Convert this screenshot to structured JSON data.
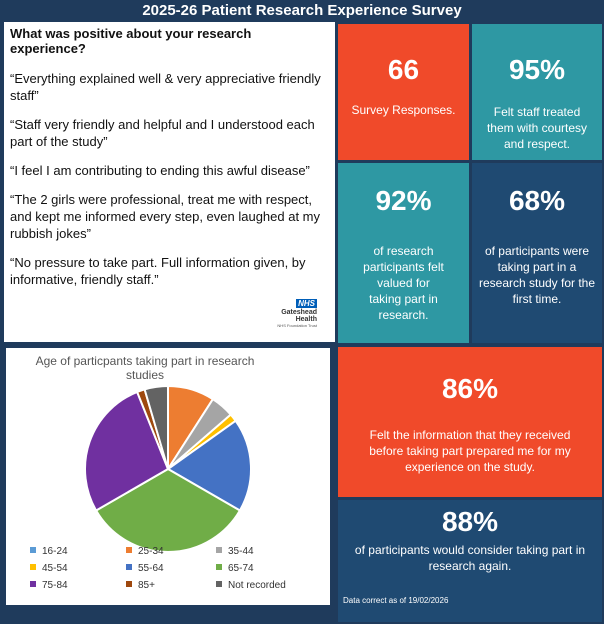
{
  "title": "2025-26 Patient Research Experience Survey",
  "quotes": {
    "heading": "What was positive about your research experience?",
    "items": [
      "“Everything explained well & very appreciative friendly staff”",
      "“Staff very friendly and helpful and I understood each part of the study”",
      "“I feel I am contributing to ending this awful disease”",
      "“The 2 girls were professional, treat me with respect, and kept me informed every step, even laughed at my rubbish jokes”",
      "“No pressure to take part. Full information given, by informative, friendly staff.”"
    ],
    "logo": {
      "badge": "NHS",
      "name": "Gateshead Health",
      "sub": "NHS Foundation Trust"
    }
  },
  "stats": [
    {
      "value": "66",
      "text": "Survey Responses."
    },
    {
      "value": "95%",
      "text": "Felt staff treated them with courtesy and respect."
    },
    {
      "value": "92%",
      "text": "of research participants felt valued for taking part in research."
    },
    {
      "value": "68%",
      "text": "of participants were taking part in a research study for the first time."
    },
    {
      "value": "86%",
      "text": "Felt the information that they received before taking part prepared me for my experience on the study."
    },
    {
      "value": "88%",
      "text": "of participants would consider taking part in research again."
    }
  ],
  "footnote": "Data correct as of 19/02/2026",
  "chart_data": {
    "type": "pie",
    "title": "Age of particpants taking part in research studies",
    "categories": [
      "16-24",
      "25-34",
      "35-44",
      "45-54",
      "55-64",
      "65-74",
      "75-84",
      "85+",
      "Not recorded"
    ],
    "values": [
      0,
      6,
      3,
      1,
      12,
      22,
      18,
      1,
      3
    ],
    "colors": [
      "#5b9bd5",
      "#ed7d31",
      "#a5a5a5",
      "#ffc000",
      "#4472c4",
      "#70ad47",
      "#7030a0",
      "#9e480e",
      "#636363"
    ],
    "legend_position": "bottom"
  }
}
